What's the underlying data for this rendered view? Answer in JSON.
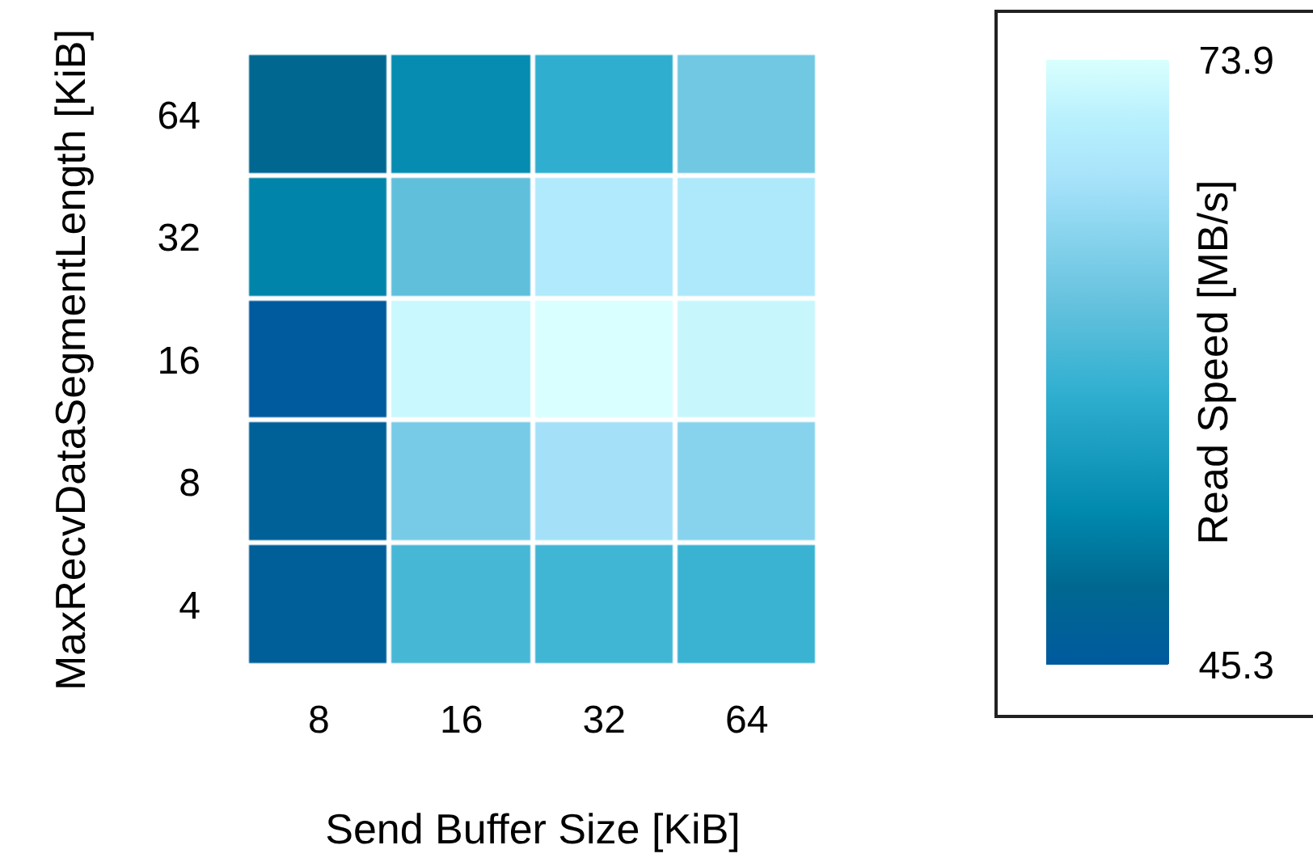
{
  "chart_data": {
    "type": "heatmap",
    "xlabel": "Send Buffer Size [KiB]",
    "ylabel": "MaxRecvDataSegmentLength [KiB]",
    "clabel": "Read Speed [MB/s]",
    "categories": [
      "8",
      "16",
      "32",
      "64"
    ],
    "y_categories": [
      "64",
      "32",
      "16",
      "8",
      "4"
    ],
    "cells": [
      [
        49.0,
        53.0,
        58.0,
        63.5
      ],
      [
        52.0,
        62.0,
        69.8,
        69.5
      ],
      [
        45.3,
        72.5,
        73.9,
        72.3
      ],
      [
        46.8,
        64.0,
        68.0,
        65.5
      ],
      [
        46.5,
        60.0,
        59.5,
        59.0
      ]
    ],
    "clim": [
      45.3,
      73.9
    ],
    "cticks": [
      73.9,
      45.3
    ]
  }
}
